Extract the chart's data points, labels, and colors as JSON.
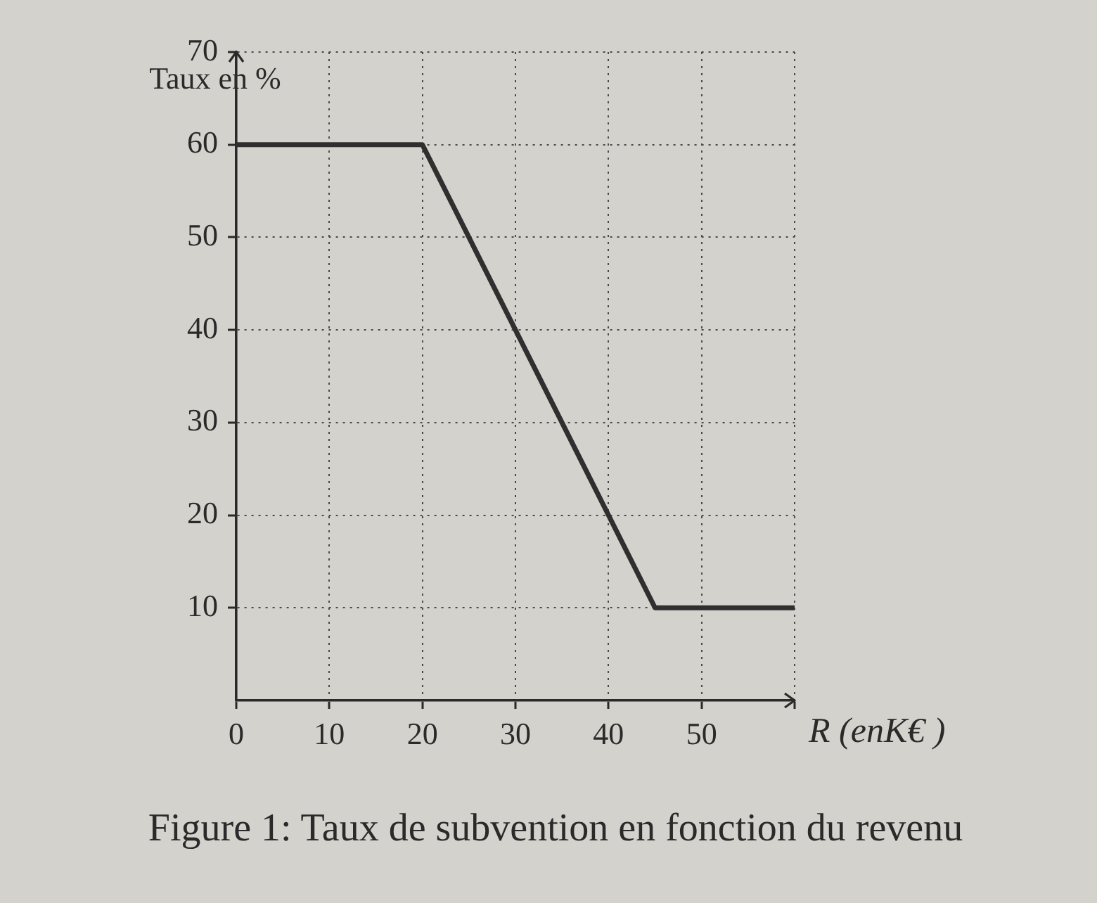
{
  "chart_data": {
    "type": "line",
    "title": "Figure 1: Taux de subvention en fonction du revenu",
    "xlabel": "R (enK€ )",
    "ylabel": "Taux en %",
    "x": [
      0,
      20,
      45,
      60
    ],
    "series": [
      {
        "color": "#2f2f2f",
        "values": [
          60,
          60,
          10,
          10
        ]
      }
    ],
    "xlim": [
      0,
      60
    ],
    "ylim": [
      0,
      70
    ],
    "xticks": [
      0,
      10,
      20,
      30,
      40,
      50,
      {
        "value": 60,
        "label": null
      }
    ],
    "yticks": [
      10,
      20,
      30,
      40,
      50,
      60,
      70
    ],
    "grid": true,
    "legend": false,
    "marker": "none",
    "line_style": "solid"
  }
}
